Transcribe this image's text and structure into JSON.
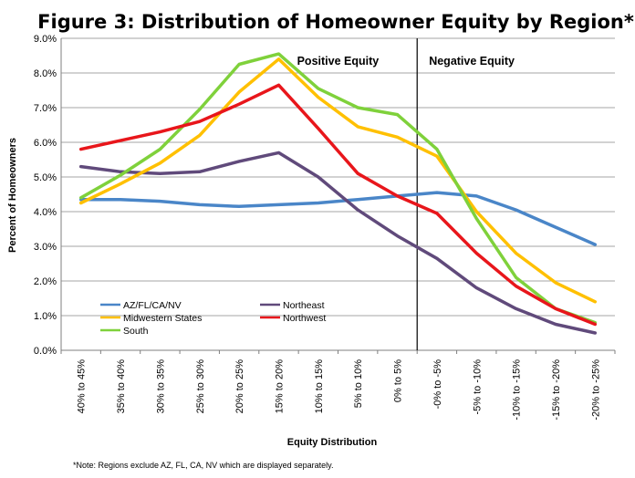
{
  "chart_data": {
    "type": "line",
    "title": "Figure 3: Distribution of Homeowner Equity by Region*",
    "xlabel": "Equity Distribution",
    "ylabel": "Percent of Homeowners",
    "categories": [
      "40% to 45%",
      "35% to 40%",
      "30% to 35%",
      "25% to 30%",
      "20% to 25%",
      "15% to 20%",
      "10% to 15%",
      "5% to 10%",
      "0% to 5%",
      "-0% to -5%",
      "-5% to -10%",
      "-10% to -15%",
      "-15% to -20%",
      "-20% to -25%"
    ],
    "ylim": [
      0,
      9
    ],
    "yticks": [
      "0.0%",
      "1.0%",
      "2.0%",
      "3.0%",
      "4.0%",
      "5.0%",
      "6.0%",
      "7.0%",
      "8.0%",
      "9.0%"
    ],
    "grid": true,
    "legend": "bottom-left, inside plot",
    "series": [
      {
        "name": "AZ/FL/CA/NV",
        "color": "#4a86c8",
        "values": [
          4.35,
          4.35,
          4.3,
          4.2,
          4.15,
          4.2,
          4.25,
          4.35,
          4.45,
          4.55,
          4.45,
          4.05,
          3.55,
          3.05
        ]
      },
      {
        "name": "Northeast",
        "color": "#604a7b",
        "values": [
          5.3,
          5.15,
          5.1,
          5.15,
          5.45,
          5.7,
          5.0,
          4.05,
          3.3,
          2.65,
          1.8,
          1.2,
          0.75,
          0.5
        ]
      },
      {
        "name": "Midwestern States",
        "color": "#ffc000",
        "values": [
          4.25,
          4.8,
          5.4,
          6.2,
          7.45,
          8.4,
          7.3,
          6.45,
          6.15,
          5.6,
          4.0,
          2.8,
          1.95,
          1.4
        ]
      },
      {
        "name": "Northwest",
        "color": "#e8161b",
        "values": [
          5.8,
          6.05,
          6.3,
          6.6,
          7.1,
          7.65,
          6.4,
          5.1,
          4.45,
          3.95,
          2.8,
          1.85,
          1.2,
          0.75
        ]
      },
      {
        "name": "South",
        "color": "#7fd13b",
        "values": [
          4.4,
          5.05,
          5.8,
          6.95,
          8.25,
          8.55,
          7.55,
          7.0,
          6.8,
          5.8,
          3.8,
          2.1,
          1.2,
          0.8
        ]
      }
    ],
    "region_labels": [
      "Positive Equity",
      "Negative Equity"
    ],
    "divider_after_category": 8,
    "footnote": "*Note: Regions exclude AZ, FL, CA, NV which are displayed separately."
  }
}
